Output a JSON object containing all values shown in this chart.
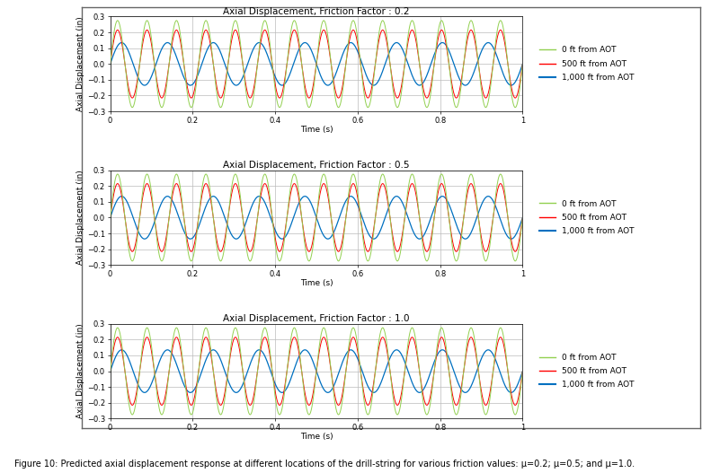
{
  "titles": [
    "Axial Displacement, Friction Factor : 0.2",
    "Axial Displacement, Friction Factor : 0.5",
    "Axial Displacement, Friction Factor : 1.0"
  ],
  "xlabel": "Time (s)",
  "ylabel": "Axial Displacement (in)",
  "xlim": [
    0,
    1
  ],
  "ylim_02": [
    -0.3,
    0.3
  ],
  "ylim_05": [
    -0.3,
    0.3
  ],
  "ylim_10": [
    -0.3,
    0.3
  ],
  "yticks_02": [
    -0.3,
    -0.2,
    -0.1,
    0,
    0.1,
    0.2,
    0.3
  ],
  "yticks_05": [
    -0.3,
    -0.2,
    -0.1,
    0,
    0.1,
    0.2,
    0.3
  ],
  "yticks_10": [
    -0.3,
    -0.2,
    -0.1,
    0,
    0.1,
    0.2,
    0.3
  ],
  "xticks": [
    0,
    0.2,
    0.4,
    0.6,
    0.8,
    1
  ],
  "freq_green": 14,
  "freq_red": 14,
  "freq_blue": 9,
  "amp_green": 0.275,
  "amp_red": 0.215,
  "amp_blue": 0.135,
  "color_green": "#92D050",
  "color_red": "#FF0000",
  "color_blue": "#0070C0",
  "legend_labels": [
    "0 ft from AOT",
    "500 ft from AOT",
    "1,000 ft from AOT"
  ],
  "grid_color": "#BBBBBB",
  "bg_color": "#FFFFFF",
  "title_fontsize": 7.5,
  "axis_fontsize": 6.5,
  "tick_fontsize": 6,
  "legend_fontsize": 6.5,
  "caption": "Figure 10: Predicted axial displacement response at different locations of the drill-string for various friction values: μ=0.2; μ=0.5; and μ=1.0.",
  "caption_fontsize": 7
}
